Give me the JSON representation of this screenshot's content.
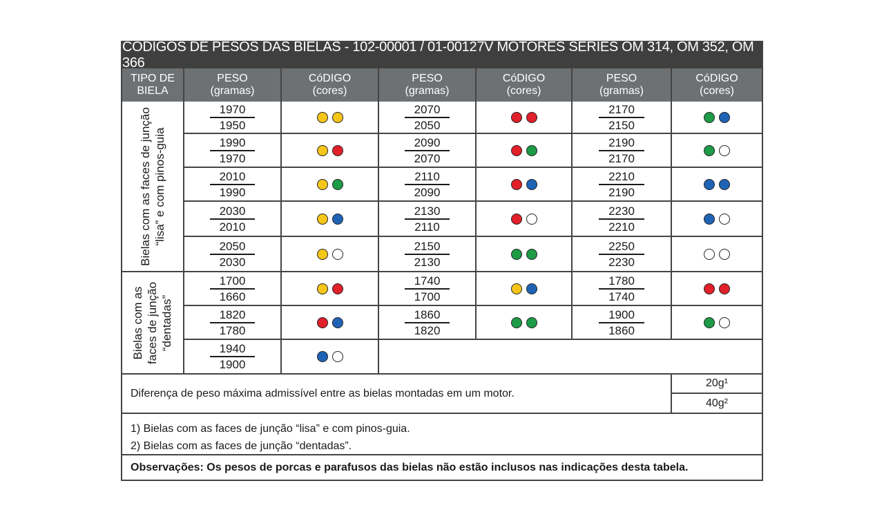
{
  "title": "CÓDIGOS DE PESOS DAS BIELAS - 102-00001 / 01-00127V MOTORES SÉRIES OM 314, OM 352, OM 366",
  "headers": {
    "tipo": [
      "TIPO DE",
      "BIELA"
    ],
    "peso": [
      "PESO",
      "(gramas)"
    ],
    "codigo": [
      "CóDIGO",
      "(cores)"
    ]
  },
  "colors": {
    "yellow": "#f5c518",
    "red": "#e1202a",
    "green": "#1d9b46",
    "blue": "#1f63b5",
    "white": "#ffffff"
  },
  "group_labels": {
    "lisa": [
      "Bielas com as faces de junção",
      "“lisa” e com pinos-guia"
    ],
    "dentada": [
      "Bielas com as",
      "faces de junção",
      "“dentadas”"
    ]
  },
  "rows": [
    {
      "cells": [
        {
          "num": "1970",
          "den": "1950",
          "code": [
            "yellow",
            "yellow"
          ]
        },
        {
          "num": "2070",
          "den": "2050",
          "code": [
            "red",
            "red"
          ]
        },
        {
          "num": "2170",
          "den": "2150",
          "code": [
            "green",
            "blue"
          ]
        }
      ]
    },
    {
      "cells": [
        {
          "num": "1990",
          "den": "1970",
          "code": [
            "yellow",
            "red"
          ]
        },
        {
          "num": "2090",
          "den": "2070",
          "code": [
            "red",
            "green"
          ]
        },
        {
          "num": "2190",
          "den": "2170",
          "code": [
            "green",
            "white"
          ]
        }
      ]
    },
    {
      "cells": [
        {
          "num": "2010",
          "den": "1990",
          "code": [
            "yellow",
            "green"
          ]
        },
        {
          "num": "2110",
          "den": "2090",
          "code": [
            "red",
            "blue"
          ]
        },
        {
          "num": "2210",
          "den": "2190",
          "code": [
            "blue",
            "blue"
          ]
        }
      ]
    },
    {
      "cells": [
        {
          "num": "2030",
          "den": "2010",
          "code": [
            "yellow",
            "blue"
          ]
        },
        {
          "num": "2130",
          "den": "2110",
          "code": [
            "red",
            "white"
          ]
        },
        {
          "num": "2230",
          "den": "2210",
          "code": [
            "blue",
            "white"
          ]
        }
      ]
    },
    {
      "cells": [
        {
          "num": "2050",
          "den": "2030",
          "code": [
            "yellow",
            "white"
          ]
        },
        {
          "num": "2150",
          "den": "2130",
          "code": [
            "green",
            "green"
          ]
        },
        {
          "num": "2250",
          "den": "2230",
          "code": [
            "white",
            "white"
          ]
        }
      ]
    },
    {
      "cells": [
        {
          "num": "1700",
          "den": "1660",
          "code": [
            "yellow",
            "red"
          ]
        },
        {
          "num": "1740",
          "den": "1700",
          "code": [
            "yellow",
            "blue"
          ]
        },
        {
          "num": "1780",
          "den": "1740",
          "code": [
            "red",
            "red"
          ]
        }
      ]
    },
    {
      "cells": [
        {
          "num": "1820",
          "den": "1780",
          "code": [
            "red",
            "blue"
          ]
        },
        {
          "num": "1860",
          "den": "1820",
          "code": [
            "green",
            "green"
          ]
        },
        {
          "num": "1900",
          "den": "1860",
          "code": [
            "green",
            "white"
          ]
        }
      ]
    },
    {
      "cells": [
        {
          "num": "1940",
          "den": "1900",
          "code": [
            "blue",
            "white"
          ]
        }
      ]
    }
  ],
  "difference": {
    "text": "Diferença de peso máxima admissível entre as bielas montadas em um motor.",
    "v1": "20g¹",
    "v2": "40g²"
  },
  "notes": [
    "1) Bielas com as faces de junção “lisa” e com pinos-guia.",
    "2) Bielas com as faces de junção “dentadas”."
  ],
  "observacoes": "Observações: Os pesos de porcas e parafusos das bielas não estão inclusos nas indicações desta tabela."
}
